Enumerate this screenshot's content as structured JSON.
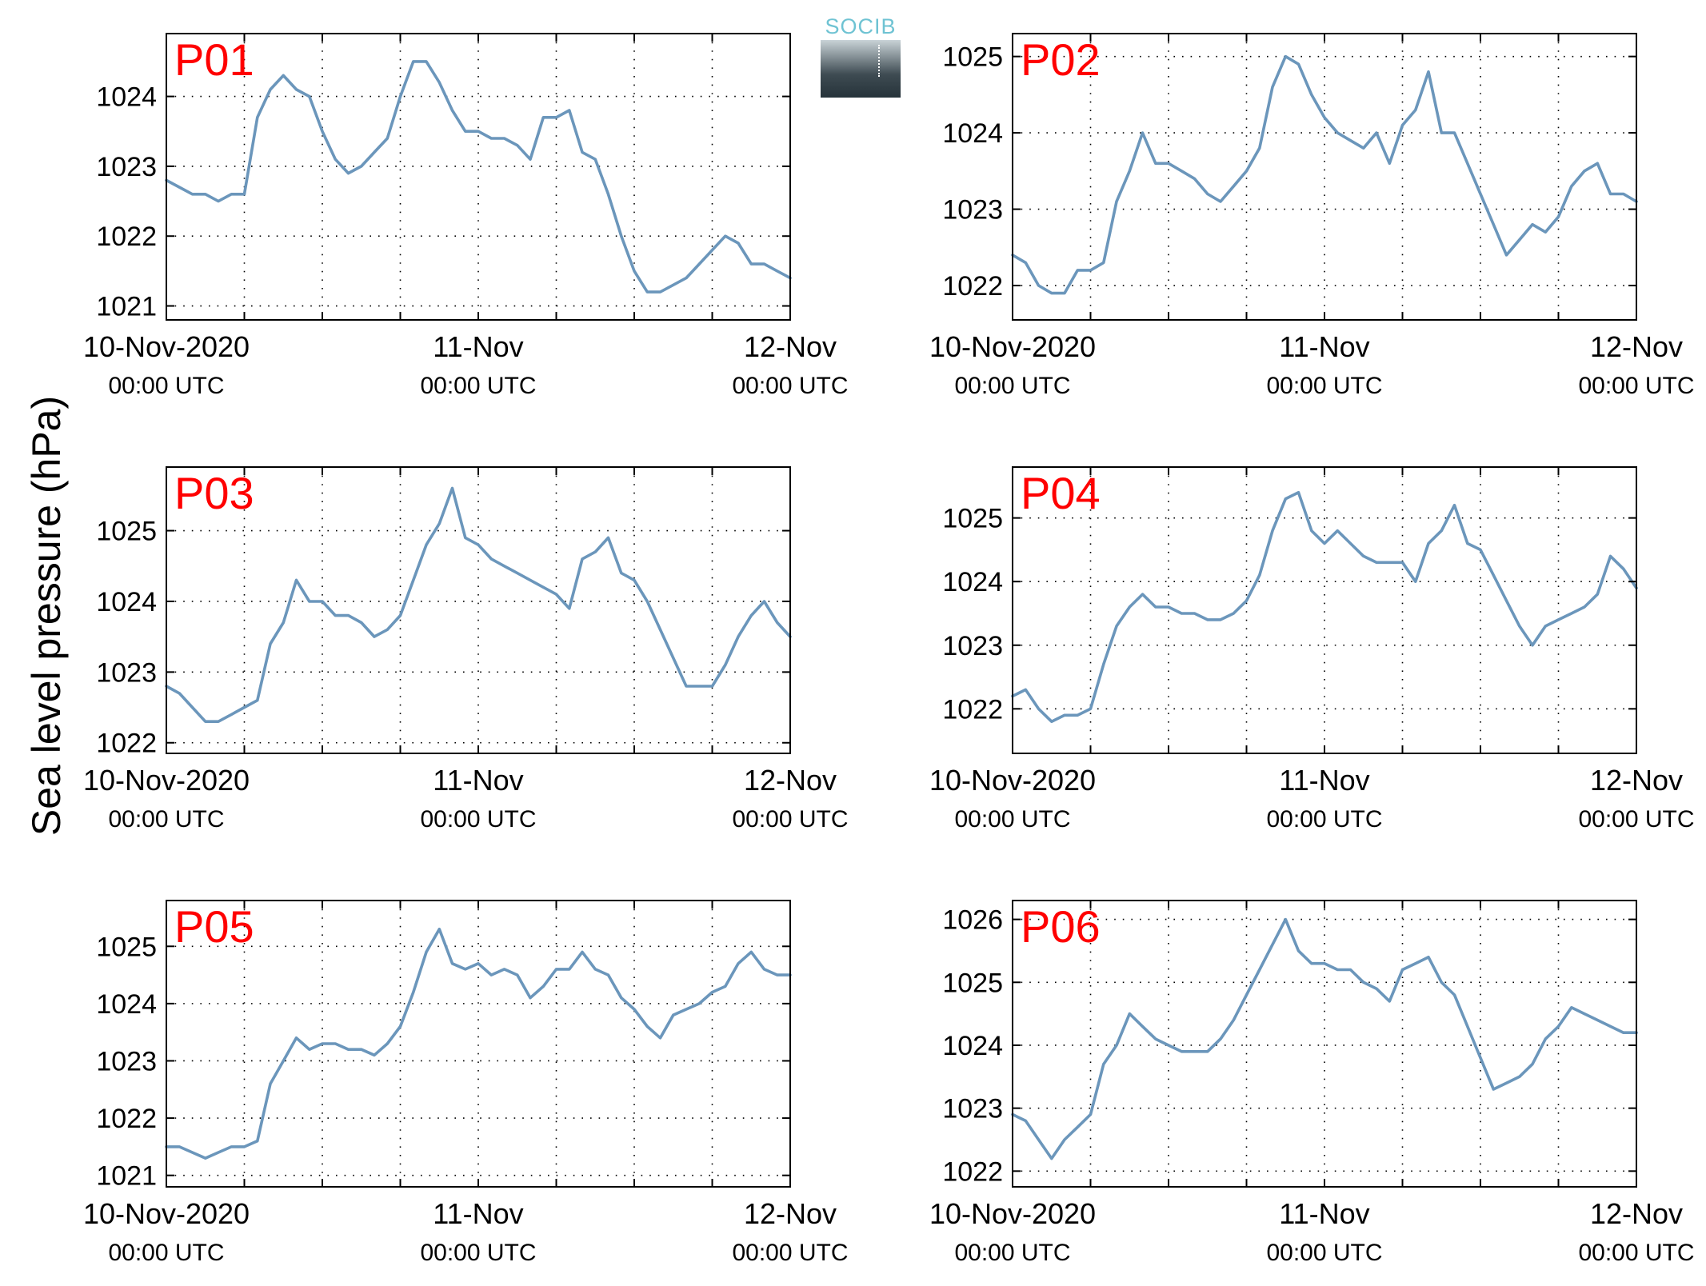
{
  "figure": {
    "ylabel": "Sea level pressure (hPa)",
    "logo_text": "SOCIB"
  },
  "colors": {
    "line": "#6b96bb",
    "panel_title": "#ff0000",
    "grid": "#000000"
  },
  "chart_data": [
    {
      "type": "line",
      "title": "P01",
      "x_ticks": [
        {
          "line1": "10-Nov-2020",
          "line2": "00:00 UTC"
        },
        {
          "line1": "11-Nov",
          "line2": "00:00 UTC"
        },
        {
          "line1": "12-Nov",
          "line2": "00:00 UTC"
        }
      ],
      "x_range_hours": [
        0,
        48
      ],
      "ylim": [
        1020.8,
        1024.9
      ],
      "yticks": [
        1021,
        1022,
        1023,
        1024
      ],
      "grid": true,
      "series": [
        {
          "x_hours": [
            0,
            1,
            2,
            3,
            4,
            5,
            6,
            7,
            8,
            9,
            10,
            11,
            12,
            13,
            14,
            15,
            16,
            17,
            18,
            19,
            20,
            21,
            22,
            23,
            24,
            25,
            26,
            27,
            28,
            29,
            30,
            31,
            32,
            33,
            34,
            35,
            36,
            37,
            38,
            39,
            40,
            41,
            42,
            43,
            44,
            45,
            46,
            47,
            48
          ],
          "values": [
            1022.8,
            1022.7,
            1022.6,
            1022.6,
            1022.5,
            1022.6,
            1022.6,
            1023.7,
            1024.1,
            1024.3,
            1024.1,
            1024.0,
            1023.5,
            1023.1,
            1022.9,
            1023.0,
            1023.2,
            1023.4,
            1024.0,
            1024.5,
            1024.5,
            1024.2,
            1023.8,
            1023.5,
            1023.5,
            1023.4,
            1023.4,
            1023.3,
            1023.1,
            1023.7,
            1023.7,
            1023.8,
            1023.2,
            1023.1,
            1022.6,
            1022.0,
            1021.5,
            1021.2,
            1021.2,
            1021.3,
            1021.4,
            1021.6,
            1021.8,
            1022.0,
            1021.9,
            1021.6,
            1021.6,
            1021.5,
            1021.4
          ]
        }
      ]
    },
    {
      "type": "line",
      "title": "P02",
      "x_ticks": [
        {
          "line1": "10-Nov-2020",
          "line2": "00:00 UTC"
        },
        {
          "line1": "11-Nov",
          "line2": "00:00 UTC"
        },
        {
          "line1": "12-Nov",
          "line2": "00:00 UTC"
        }
      ],
      "x_range_hours": [
        0,
        48
      ],
      "ylim": [
        1021.55,
        1025.3
      ],
      "yticks": [
        1022,
        1023,
        1024,
        1025
      ],
      "grid": true,
      "series": [
        {
          "x_hours": [
            0,
            1,
            2,
            3,
            4,
            5,
            6,
            7,
            8,
            9,
            10,
            11,
            12,
            13,
            14,
            15,
            16,
            17,
            18,
            19,
            20,
            21,
            22,
            23,
            24,
            25,
            26,
            27,
            28,
            29,
            30,
            31,
            32,
            33,
            34,
            35,
            36,
            37,
            38,
            39,
            40,
            41,
            42,
            43,
            44,
            45,
            46,
            47,
            48
          ],
          "values": [
            1022.4,
            1022.3,
            1022.0,
            1021.9,
            1021.9,
            1022.2,
            1022.2,
            1022.3,
            1023.1,
            1023.5,
            1024.0,
            1023.6,
            1023.6,
            1023.5,
            1023.4,
            1023.2,
            1023.1,
            1023.3,
            1023.5,
            1023.8,
            1024.6,
            1025.0,
            1024.9,
            1024.5,
            1024.2,
            1024.0,
            1023.9,
            1023.8,
            1024.0,
            1023.6,
            1024.1,
            1024.3,
            1024.8,
            1024.0,
            1024.0,
            1023.6,
            1023.2,
            1022.8,
            1022.4,
            1022.6,
            1022.8,
            1022.7,
            1022.9,
            1023.3,
            1023.5,
            1023.6,
            1023.2,
            1023.2,
            1023.1
          ]
        }
      ]
    },
    {
      "type": "line",
      "title": "P03",
      "x_ticks": [
        {
          "line1": "10-Nov-2020",
          "line2": "00:00 UTC"
        },
        {
          "line1": "11-Nov",
          "line2": "00:00 UTC"
        },
        {
          "line1": "12-Nov",
          "line2": "00:00 UTC"
        }
      ],
      "x_range_hours": [
        0,
        48
      ],
      "ylim": [
        1021.85,
        1025.9
      ],
      "yticks": [
        1022,
        1023,
        1024,
        1025
      ],
      "grid": true,
      "series": [
        {
          "x_hours": [
            0,
            1,
            2,
            3,
            4,
            5,
            6,
            7,
            8,
            9,
            10,
            11,
            12,
            13,
            14,
            15,
            16,
            17,
            18,
            19,
            20,
            21,
            22,
            23,
            24,
            25,
            26,
            27,
            28,
            29,
            30,
            31,
            32,
            33,
            34,
            35,
            36,
            37,
            38,
            39,
            40,
            41,
            42,
            43,
            44,
            45,
            46,
            47,
            48
          ],
          "values": [
            1022.8,
            1022.7,
            1022.5,
            1022.3,
            1022.3,
            1022.4,
            1022.5,
            1022.6,
            1023.4,
            1023.7,
            1024.3,
            1024.0,
            1024.0,
            1023.8,
            1023.8,
            1023.7,
            1023.5,
            1023.6,
            1023.8,
            1024.3,
            1024.8,
            1025.1,
            1025.6,
            1024.9,
            1024.8,
            1024.6,
            1024.5,
            1024.4,
            1024.3,
            1024.2,
            1024.1,
            1023.9,
            1024.6,
            1024.7,
            1024.9,
            1024.4,
            1024.3,
            1024.0,
            1023.6,
            1023.2,
            1022.8,
            1022.8,
            1022.8,
            1023.1,
            1023.5,
            1023.8,
            1024.0,
            1023.7,
            1023.5
          ]
        }
      ]
    },
    {
      "type": "line",
      "title": "P04",
      "x_ticks": [
        {
          "line1": "10-Nov-2020",
          "line2": "00:00 UTC"
        },
        {
          "line1": "11-Nov",
          "line2": "00:00 UTC"
        },
        {
          "line1": "12-Nov",
          "line2": "00:00 UTC"
        }
      ],
      "x_range_hours": [
        0,
        48
      ],
      "ylim": [
        1021.3,
        1025.8
      ],
      "yticks": [
        1022,
        1023,
        1024,
        1025
      ],
      "grid": true,
      "series": [
        {
          "x_hours": [
            0,
            1,
            2,
            3,
            4,
            5,
            6,
            7,
            8,
            9,
            10,
            11,
            12,
            13,
            14,
            15,
            16,
            17,
            18,
            19,
            20,
            21,
            22,
            23,
            24,
            25,
            26,
            27,
            28,
            29,
            30,
            31,
            32,
            33,
            34,
            35,
            36,
            37,
            38,
            39,
            40,
            41,
            42,
            43,
            44,
            45,
            46,
            47,
            48
          ],
          "values": [
            1022.2,
            1022.3,
            1022.0,
            1021.8,
            1021.9,
            1021.9,
            1022.0,
            1022.7,
            1023.3,
            1023.6,
            1023.8,
            1023.6,
            1023.6,
            1023.5,
            1023.5,
            1023.4,
            1023.4,
            1023.5,
            1023.7,
            1024.1,
            1024.8,
            1025.3,
            1025.4,
            1024.8,
            1024.6,
            1024.8,
            1024.6,
            1024.4,
            1024.3,
            1024.3,
            1024.3,
            1024.0,
            1024.6,
            1024.8,
            1025.2,
            1024.6,
            1024.5,
            1024.1,
            1023.7,
            1023.3,
            1023.0,
            1023.3,
            1023.4,
            1023.5,
            1023.6,
            1023.8,
            1024.4,
            1024.2,
            1023.9
          ]
        }
      ]
    },
    {
      "type": "line",
      "title": "P05",
      "x_ticks": [
        {
          "line1": "10-Nov-2020",
          "line2": "00:00 UTC"
        },
        {
          "line1": "11-Nov",
          "line2": "00:00 UTC"
        },
        {
          "line1": "12-Nov",
          "line2": "00:00 UTC"
        }
      ],
      "x_range_hours": [
        0,
        48
      ],
      "ylim": [
        1020.8,
        1025.8
      ],
      "yticks": [
        1021,
        1022,
        1023,
        1024,
        1025
      ],
      "grid": true,
      "series": [
        {
          "x_hours": [
            0,
            1,
            2,
            3,
            4,
            5,
            6,
            7,
            8,
            9,
            10,
            11,
            12,
            13,
            14,
            15,
            16,
            17,
            18,
            19,
            20,
            21,
            22,
            23,
            24,
            25,
            26,
            27,
            28,
            29,
            30,
            31,
            32,
            33,
            34,
            35,
            36,
            37,
            38,
            39,
            40,
            41,
            42,
            43,
            44,
            45,
            46,
            47,
            48
          ],
          "values": [
            1021.5,
            1021.5,
            1021.4,
            1021.3,
            1021.4,
            1021.5,
            1021.5,
            1021.6,
            1022.6,
            1023.0,
            1023.4,
            1023.2,
            1023.3,
            1023.3,
            1023.2,
            1023.2,
            1023.1,
            1023.3,
            1023.6,
            1024.2,
            1024.9,
            1025.3,
            1024.7,
            1024.6,
            1024.7,
            1024.5,
            1024.6,
            1024.5,
            1024.1,
            1024.3,
            1024.6,
            1024.6,
            1024.9,
            1024.6,
            1024.5,
            1024.1,
            1023.9,
            1023.6,
            1023.4,
            1023.8,
            1023.9,
            1024.0,
            1024.2,
            1024.3,
            1024.7,
            1024.9,
            1024.6,
            1024.5,
            1024.5
          ]
        }
      ]
    },
    {
      "type": "line",
      "title": "P06",
      "x_ticks": [
        {
          "line1": "10-Nov-2020",
          "line2": "00:00 UTC"
        },
        {
          "line1": "11-Nov",
          "line2": "00:00 UTC"
        },
        {
          "line1": "12-Nov",
          "line2": "00:00 UTC"
        }
      ],
      "x_range_hours": [
        0,
        48
      ],
      "ylim": [
        1021.75,
        1026.3
      ],
      "yticks": [
        1022,
        1023,
        1024,
        1025,
        1026
      ],
      "grid": true,
      "series": [
        {
          "x_hours": [
            0,
            1,
            2,
            3,
            4,
            5,
            6,
            7,
            8,
            9,
            10,
            11,
            12,
            13,
            14,
            15,
            16,
            17,
            18,
            19,
            20,
            21,
            22,
            23,
            24,
            25,
            26,
            27,
            28,
            29,
            30,
            31,
            32,
            33,
            34,
            35,
            36,
            37,
            38,
            39,
            40,
            41,
            42,
            43,
            44,
            45,
            46,
            47,
            48
          ],
          "values": [
            1022.9,
            1022.8,
            1022.5,
            1022.2,
            1022.5,
            1022.7,
            1022.9,
            1023.7,
            1024.0,
            1024.5,
            1024.3,
            1024.1,
            1024.0,
            1023.9,
            1023.9,
            1023.9,
            1024.1,
            1024.4,
            1024.8,
            1025.2,
            1025.6,
            1026.0,
            1025.5,
            1025.3,
            1025.3,
            1025.2,
            1025.2,
            1025.0,
            1024.9,
            1024.7,
            1025.2,
            1025.3,
            1025.4,
            1025.0,
            1024.8,
            1024.3,
            1023.8,
            1023.3,
            1023.4,
            1023.5,
            1023.7,
            1024.1,
            1024.3,
            1024.6,
            1024.5,
            1024.4,
            1024.3,
            1024.2,
            1024.2
          ]
        }
      ]
    }
  ]
}
